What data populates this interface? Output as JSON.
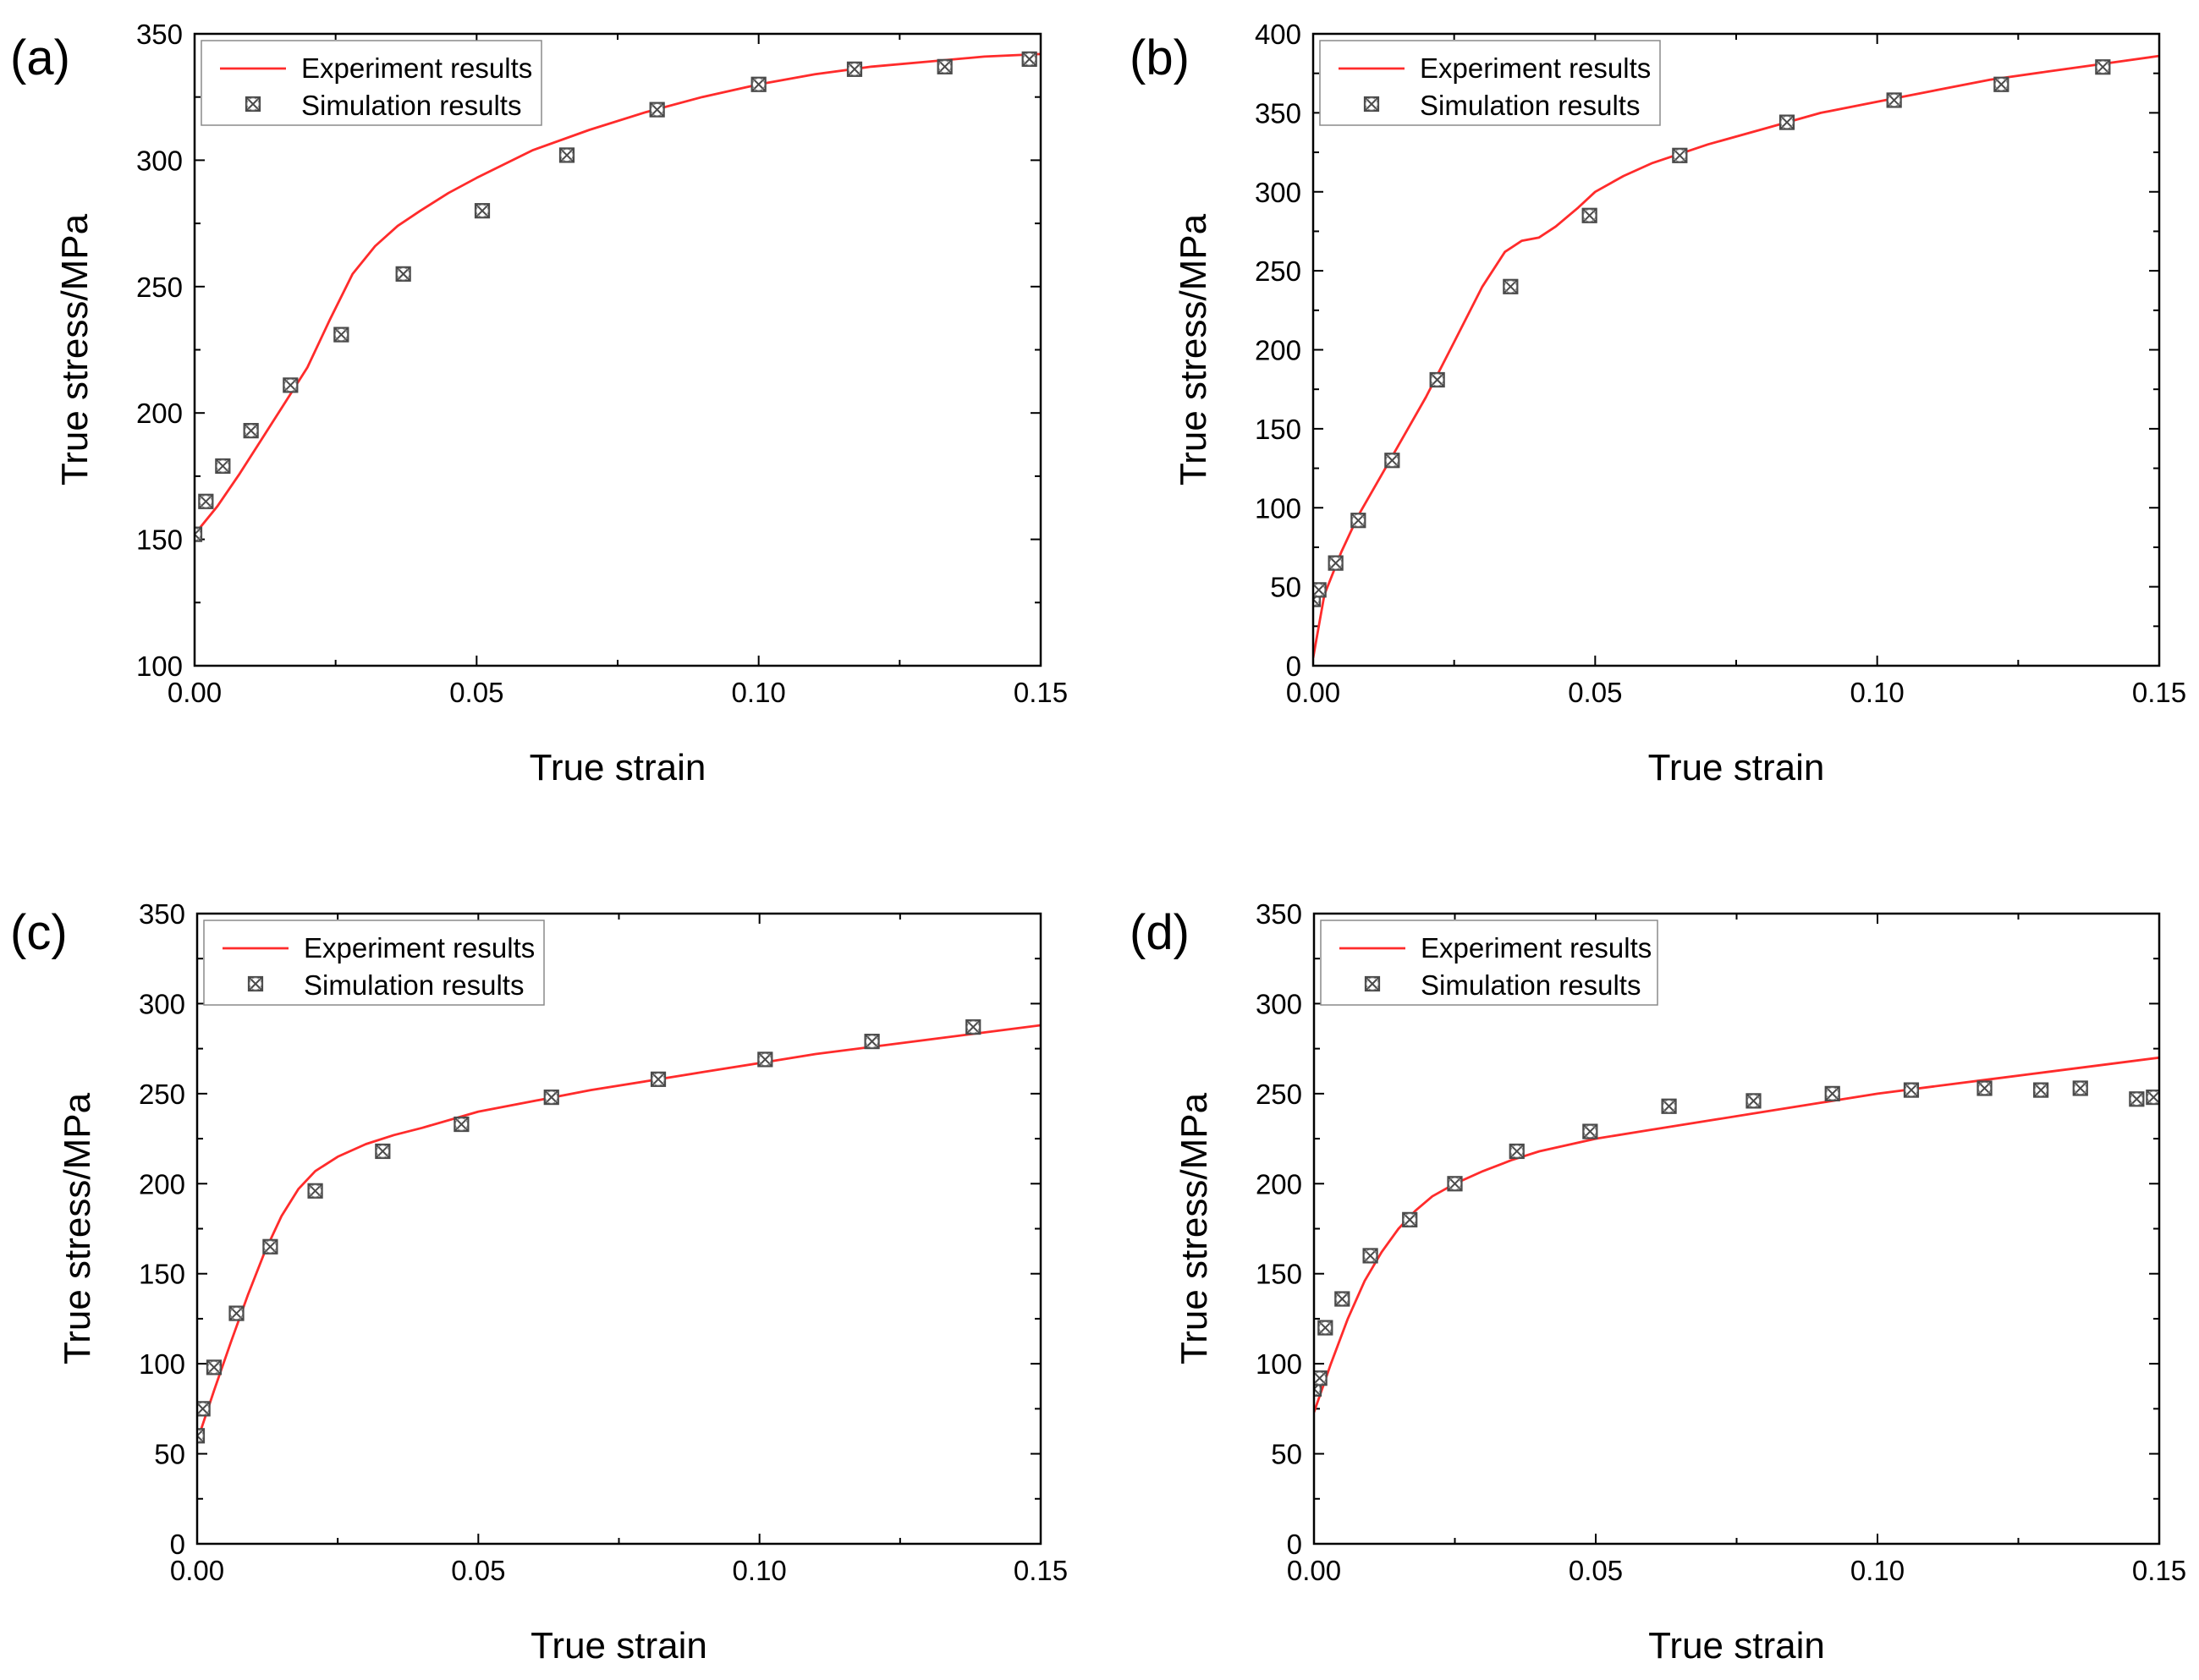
{
  "chart_data": [
    {
      "type": "line",
      "panel_label": "(a)",
      "xlabel": "True strain",
      "ylabel": "True stress/MPa",
      "xlim": [
        0,
        0.15
      ],
      "ylim": [
        100,
        350
      ],
      "xticks": [
        "0.00",
        "0.05",
        "0.10",
        "0.15"
      ],
      "yticks": [
        "100",
        "150",
        "200",
        "250",
        "300",
        "350"
      ],
      "legend": {
        "position": "top-left",
        "line": "Experiment results",
        "marker": "Simulation results"
      },
      "series": [
        {
          "name": "Experiment results",
          "style": "line",
          "color": "#ff2b2b",
          "x": [
            0,
            0.004,
            0.008,
            0.012,
            0.016,
            0.02,
            0.024,
            0.028,
            0.032,
            0.036,
            0.04,
            0.045,
            0.05,
            0.06,
            0.07,
            0.08,
            0.09,
            0.1,
            0.11,
            0.12,
            0.13,
            0.14,
            0.15
          ],
          "y": [
            152,
            163,
            176,
            190,
            204,
            218,
            237,
            255,
            266,
            274,
            280,
            287,
            293,
            304,
            312,
            319,
            325,
            330,
            334,
            337,
            339,
            341,
            342
          ]
        },
        {
          "name": "Simulation results",
          "style": "marker",
          "color": "#555555",
          "x": [
            0,
            0.002,
            0.005,
            0.01,
            0.017,
            0.026,
            0.037,
            0.051,
            0.066,
            0.082,
            0.1,
            0.117,
            0.133,
            0.148
          ],
          "y": [
            152,
            165,
            179,
            193,
            211,
            231,
            255,
            280,
            302,
            320,
            330,
            336,
            337,
            340
          ]
        }
      ]
    },
    {
      "type": "line",
      "panel_label": "(b)",
      "xlabel": "True strain",
      "ylabel": "True stress/MPa",
      "xlim": [
        0,
        0.15
      ],
      "ylim": [
        0,
        400
      ],
      "xticks": [
        "0.00",
        "0.05",
        "0.10",
        "0.15"
      ],
      "yticks": [
        "0",
        "50",
        "100",
        "150",
        "200",
        "250",
        "300",
        "350",
        "400"
      ],
      "legend": {
        "position": "top-left",
        "line": "Experiment results",
        "marker": "Simulation results"
      },
      "series": [
        {
          "name": "Experiment results",
          "style": "line",
          "color": "#ff2b2b",
          "x": [
            0,
            0.002,
            0.005,
            0.008,
            0.012,
            0.016,
            0.02,
            0.025,
            0.03,
            0.034,
            0.037,
            0.04,
            0.043,
            0.047,
            0.05,
            0.055,
            0.06,
            0.07,
            0.08,
            0.09,
            0.1,
            0.11,
            0.12,
            0.13,
            0.14,
            0.15
          ],
          "y": [
            5,
            45,
            72,
            95,
            120,
            145,
            170,
            205,
            240,
            262,
            269,
            271,
            278,
            290,
            300,
            310,
            318,
            330,
            340,
            350,
            357,
            364,
            371,
            376,
            381,
            386
          ]
        },
        {
          "name": "Simulation results",
          "style": "marker",
          "color": "#555555",
          "x": [
            0,
            0.001,
            0.004,
            0.008,
            0.014,
            0.022,
            0.035,
            0.049,
            0.065,
            0.084,
            0.103,
            0.122,
            0.14
          ],
          "y": [
            42,
            48,
            65,
            92,
            130,
            181,
            240,
            285,
            323,
            344,
            358,
            368,
            379
          ]
        }
      ]
    },
    {
      "type": "line",
      "panel_label": "(c)",
      "xlabel": "True strain",
      "ylabel": "True stress/MPa",
      "xlim": [
        0,
        0.15
      ],
      "ylim": [
        0,
        350
      ],
      "xticks": [
        "0.00",
        "0.05",
        "0.10",
        "0.15"
      ],
      "yticks": [
        "0",
        "50",
        "100",
        "150",
        "200",
        "250",
        "300",
        "350"
      ],
      "legend": {
        "position": "top-left",
        "line": "Experiment results",
        "marker": "Simulation results"
      },
      "series": [
        {
          "name": "Experiment results",
          "style": "line",
          "color": "#ff2b2b",
          "x": [
            0,
            0.003,
            0.006,
            0.009,
            0.012,
            0.015,
            0.018,
            0.021,
            0.025,
            0.03,
            0.035,
            0.04,
            0.05,
            0.06,
            0.07,
            0.08,
            0.09,
            0.1,
            0.11,
            0.12,
            0.13,
            0.14,
            0.15
          ],
          "y": [
            57,
            85,
            112,
            138,
            162,
            182,
            197,
            207,
            215,
            222,
            227,
            231,
            240,
            246,
            252,
            257,
            262,
            267,
            272,
            276,
            280,
            284,
            288
          ]
        },
        {
          "name": "Simulation results",
          "style": "marker",
          "color": "#555555",
          "x": [
            0,
            0.001,
            0.003,
            0.007,
            0.013,
            0.021,
            0.033,
            0.047,
            0.063,
            0.082,
            0.101,
            0.12,
            0.138
          ],
          "y": [
            60,
            75,
            98,
            128,
            165,
            196,
            218,
            233,
            248,
            258,
            269,
            279,
            287
          ]
        }
      ]
    },
    {
      "type": "line",
      "panel_label": "(d)",
      "xlabel": "True strain",
      "ylabel": "True stress/MPa",
      "xlim": [
        0,
        0.15
      ],
      "ylim": [
        0,
        350
      ],
      "xticks": [
        "0.00",
        "0.05",
        "0.10",
        "0.15"
      ],
      "yticks": [
        "0",
        "50",
        "100",
        "150",
        "200",
        "250",
        "300",
        "350"
      ],
      "legend": {
        "position": "top-left",
        "line": "Experiment results",
        "marker": "Simulation results"
      },
      "series": [
        {
          "name": "Experiment results",
          "style": "line",
          "color": "#ff2b2b",
          "x": [
            0,
            0.003,
            0.006,
            0.009,
            0.012,
            0.015,
            0.018,
            0.021,
            0.025,
            0.03,
            0.035,
            0.04,
            0.05,
            0.06,
            0.07,
            0.08,
            0.09,
            0.1,
            0.11,
            0.12,
            0.13,
            0.14,
            0.15
          ],
          "y": [
            73,
            100,
            125,
            146,
            162,
            175,
            185,
            193,
            200,
            207,
            213,
            218,
            225,
            230,
            235,
            240,
            245,
            250,
            254,
            258,
            262,
            266,
            270
          ]
        },
        {
          "name": "Simulation results",
          "style": "marker",
          "color": "#555555",
          "x": [
            0,
            0.001,
            0.002,
            0.005,
            0.01,
            0.017,
            0.025,
            0.036,
            0.049,
            0.063,
            0.078,
            0.092,
            0.106,
            0.119,
            0.129,
            0.136,
            0.146,
            0.149
          ],
          "y": [
            86,
            92,
            120,
            136,
            160,
            180,
            200,
            218,
            229,
            243,
            246,
            250,
            252,
            253,
            252,
            253,
            247,
            248
          ]
        }
      ]
    }
  ]
}
